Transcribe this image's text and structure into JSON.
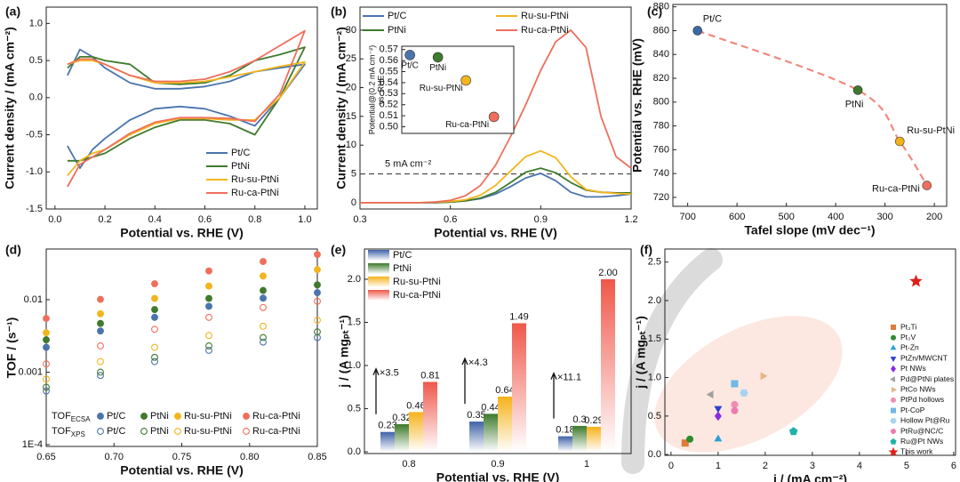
{
  "chart_data": [
    {
      "type": "line",
      "panel": "(a)",
      "xlabel": "Potential vs. RHE (V)",
      "ylabel": "Current density / (mA cm⁻²)",
      "xlim": [
        -0.035,
        1.05
      ],
      "ylim": [
        -1.5,
        1.22
      ],
      "xticks": [
        {
          "value": 0,
          "label": "0.0"
        },
        0.2,
        0.4,
        0.6,
        0.8,
        {
          "value": 1,
          "label": "1.0"
        }
      ],
      "yticks": [
        {
          "value": 1,
          "label": "1.0"
        },
        0.5,
        {
          "value": 0,
          "label": "0.0"
        },
        -0.5,
        {
          "value": -1,
          "label": "-1.0"
        },
        -1.5
      ],
      "legend": "lower right",
      "x": [
        0.05,
        0.1,
        0.15,
        0.2,
        0.3,
        0.4,
        0.5,
        0.6,
        0.7,
        0.8,
        0.9,
        1.0,
        0.9,
        0.8,
        0.7,
        0.6,
        0.5,
        0.4,
        0.3,
        0.2,
        0.15,
        0.1,
        0.05
      ],
      "series": [
        {
          "name": "Pt/C",
          "color": "#4a74ad",
          "values": [
            0.3,
            0.65,
            0.55,
            0.4,
            0.2,
            0.12,
            0.12,
            0.15,
            0.22,
            0.35,
            0.4,
            0.45,
            0.0,
            -0.38,
            -0.25,
            -0.15,
            -0.12,
            -0.15,
            -0.3,
            -0.55,
            -0.7,
            -0.95,
            -0.65
          ]
        },
        {
          "name": "PtNi",
          "color": "#3f7a2d",
          "values": [
            0.4,
            0.55,
            0.55,
            0.5,
            0.45,
            0.2,
            0.18,
            0.2,
            0.3,
            0.5,
            0.58,
            0.68,
            0.0,
            -0.5,
            -0.35,
            -0.3,
            -0.3,
            -0.4,
            -0.55,
            -0.75,
            -0.8,
            -0.85,
            -0.85
          ]
        },
        {
          "name": "Ru-su-PtNi",
          "color": "#f3b51d",
          "values": [
            0.45,
            0.5,
            0.5,
            0.45,
            0.3,
            0.2,
            0.2,
            0.22,
            0.28,
            0.35,
            0.42,
            0.48,
            0.0,
            -0.3,
            -0.3,
            -0.28,
            -0.28,
            -0.35,
            -0.5,
            -0.7,
            -0.75,
            -0.85,
            -1.05
          ]
        },
        {
          "name": "Ru-ca-PtNi",
          "color": "#ef6f5c",
          "values": [
            0.45,
            0.52,
            0.52,
            0.45,
            0.3,
            0.22,
            0.22,
            0.25,
            0.35,
            0.5,
            0.7,
            0.9,
            0.05,
            -0.32,
            -0.28,
            -0.27,
            -0.27,
            -0.33,
            -0.48,
            -0.7,
            -0.8,
            -0.9,
            -1.2
          ]
        }
      ]
    },
    {
      "type": "line",
      "panel": "(b)",
      "xlabel": "Potential vs. RHE (V)",
      "ylabel": "Current density / (mA cm⁻²)",
      "xlim": [
        0.3,
        1.2
      ],
      "ylim": [
        -1.1,
        34
      ],
      "xticks": [
        0.3,
        0.6,
        0.9,
        1.2
      ],
      "yticks": [
        0,
        5,
        10,
        15,
        20,
        25,
        30
      ],
      "legend": "upper left",
      "hline": {
        "value": 5,
        "label": "5 mA cm⁻²"
      },
      "x": [
        0.3,
        0.35,
        0.4,
        0.45,
        0.5,
        0.55,
        0.6,
        0.65,
        0.7,
        0.75,
        0.8,
        0.85,
        0.9,
        0.95,
        1.0,
        1.05,
        1.1,
        1.15,
        1.2
      ],
      "series": [
        {
          "name": "Pt/C",
          "color": "#4a74ad",
          "values": [
            0,
            0,
            0,
            0,
            0,
            0,
            0.1,
            0.3,
            0.7,
            1.5,
            2.8,
            4.3,
            5.1,
            3.8,
            1.8,
            1.0,
            1.0,
            1.2,
            1.5
          ]
        },
        {
          "name": "PtNi",
          "color": "#3f7a2d",
          "values": [
            0,
            0,
            0,
            0,
            0,
            0,
            0.1,
            0.3,
            0.8,
            1.8,
            3.5,
            5.3,
            6.0,
            5.2,
            3.5,
            2.2,
            1.8,
            1.7,
            1.7
          ]
        },
        {
          "name": "Ru-su-PtNi",
          "color": "#f3b51d",
          "values": [
            0,
            0,
            0,
            0,
            0,
            0.1,
            0.2,
            0.5,
            1.3,
            3.0,
            5.5,
            8.0,
            9.0,
            7.8,
            4.5,
            2.3,
            1.8,
            1.6,
            1.5
          ]
        },
        {
          "name": "Ru-ca-PtNi",
          "color": "#ef6f5c",
          "values": [
            0,
            0,
            0,
            0,
            0,
            0.1,
            0.4,
            1.2,
            3.0,
            6.5,
            11.5,
            17,
            23,
            28,
            30,
            27,
            15,
            8,
            6
          ]
        }
      ],
      "inset": {
        "ylabel": [
          "Potential@(0.2 mA cm⁻²)",
          "vs. RHE"
        ],
        "ylim": [
          0.494,
          0.573
        ],
        "yticks": [
          {
            "value": 0.5,
            "label": "0.50"
          },
          0.51,
          0.52,
          0.53,
          0.54,
          0.55,
          0.56,
          0.57
        ],
        "categories": [
          "Pt/C",
          "PtNi",
          "Ru-su-PtNi",
          "Ru-ca-PtNi"
        ],
        "values": [
          0.565,
          0.563,
          0.542,
          0.509
        ]
      }
    },
    {
      "type": "scatter",
      "panel": "(c)",
      "xlabel": "Tafel slope (mV dec⁻¹)",
      "ylabel": "Potential vs. RHE (mV)",
      "xlim": [
        730,
        175
      ],
      "ylim": [
        712.5,
        882
      ],
      "xticks": [
        700,
        600,
        500,
        400,
        300,
        200
      ],
      "yticks": [
        720,
        740,
        760,
        780,
        800,
        820,
        840,
        860,
        880
      ],
      "trend": true,
      "names": [
        "Pt/C",
        "PtNi",
        "Ru-su-PtNi",
        "Ru-ca-PtNi"
      ],
      "x": [
        680,
        355,
        270,
        215
      ],
      "values": [
        860,
        810,
        767,
        730
      ],
      "colors": [
        "#3a6aa5",
        "#3d7a2c",
        "#f4b21a",
        "#ef6f5c"
      ]
    },
    {
      "type": "scatter",
      "panel": "(d)",
      "xlabel": "Potential vs. RHE (V)",
      "ylabel": "TOF / (s⁻¹)",
      "xlim": [
        0.65,
        0.85
      ],
      "ylim": [
        9.45e-05,
        0.05
      ],
      "ylog": true,
      "xticks": [
        0.65,
        {
          "value": 0.7,
          "label": "0.70"
        },
        0.75,
        {
          "value": 0.8,
          "label": "0.80"
        },
        0.85
      ],
      "yticks": [
        {
          "value": 0.0001,
          "label": "1E-4"
        },
        0.001,
        0.01
      ],
      "legend": "lower left",
      "legend_rows": [
        {
          "label": "TOF",
          "subscript": "ECSA"
        },
        {
          "label": "TOF",
          "subscript": "XPS"
        }
      ],
      "x": [
        0.65,
        0.69,
        0.73,
        0.77,
        0.81,
        0.85
      ],
      "series": [
        {
          "name": "Pt/C",
          "color": "#4a74ad",
          "row": 0,
          "filled": true,
          "values": [
            0.0022,
            0.0037,
            0.0057,
            0.0081,
            0.0105,
            0.0125
          ]
        },
        {
          "name": "PtNi",
          "color": "#3f7a2d",
          "row": 0,
          "filled": true,
          "values": [
            0.0028,
            0.0047,
            0.0073,
            0.0104,
            0.0134,
            0.016
          ]
        },
        {
          "name": "Ru-su-PtNi",
          "color": "#f3b51d",
          "row": 0,
          "filled": true,
          "values": [
            0.0035,
            0.0064,
            0.0104,
            0.0154,
            0.0212,
            0.026
          ]
        },
        {
          "name": "Ru-ca-PtNi",
          "color": "#ef6f5c",
          "row": 0,
          "filled": true,
          "values": [
            0.0055,
            0.0101,
            0.0166,
            0.0249,
            0.0336,
            0.042
          ]
        },
        {
          "name": "Pt/C",
          "color": "#4a74ad",
          "row": 1,
          "filled": false,
          "values": [
            0.00055,
            0.0009,
            0.0014,
            0.002,
            0.0026,
            0.003
          ]
        },
        {
          "name": "PtNi",
          "color": "#3f7a2d",
          "row": 1,
          "filled": false,
          "values": [
            0.00062,
            0.001,
            0.0016,
            0.0023,
            0.003,
            0.0036
          ]
        },
        {
          "name": "Ru-su-PtNi",
          "color": "#f3b51d",
          "row": 1,
          "filled": false,
          "values": [
            0.0008,
            0.0014,
            0.0022,
            0.0032,
            0.0043,
            0.0052
          ]
        },
        {
          "name": "Ru-ca-PtNi",
          "color": "#ef6f5c",
          "row": 1,
          "filled": false,
          "values": [
            0.0013,
            0.0023,
            0.0039,
            0.0057,
            0.0078,
            0.0095
          ]
        }
      ]
    },
    {
      "type": "bar",
      "panel": "(e)",
      "xlabel": "Potential vs. RHE (V)",
      "ylabel": "j / (A mgₚₜ⁻¹)",
      "ylim": [
        -0.02,
        2.35
      ],
      "yticks": [
        {
          "value": 0,
          "label": "0.0"
        },
        0.5,
        {
          "value": 1,
          "label": "1.0"
        },
        1.5,
        {
          "value": 2,
          "label": "2.0"
        }
      ],
      "legend": "upper left",
      "categories": [
        "0.8",
        "0.9",
        "1"
      ],
      "annotations": [
        "×3.5",
        "×4.3",
        "×11.1"
      ],
      "series": [
        {
          "name": "Pt/C",
          "color": "#3f62a8",
          "values": [
            0.23,
            0.35,
            0.18
          ]
        },
        {
          "name": "PtNi",
          "color": "#3d7a2c",
          "values": [
            0.32,
            0.44,
            0.3
          ]
        },
        {
          "name": "Ru-su-PtNi",
          "color": "#f6b21a",
          "values": [
            0.46,
            0.64,
            0.29
          ]
        },
        {
          "name": "Ru-ca-PtNi",
          "color": "#f0574a",
          "values": [
            0.81,
            1.49,
            2
          ],
          "value_labels": [
            "0.81",
            "1.49",
            "2.00"
          ]
        }
      ]
    },
    {
      "type": "scatter",
      "panel": "(f)",
      "xlabel": "j / (mA cm⁻²)",
      "ylabel": "j / (A mgₚₜ⁻¹)",
      "xlim": [
        -0.13,
        6.04
      ],
      "ylim": [
        -0.01,
        2.67
      ],
      "xticks": [
        0,
        1,
        2,
        3,
        4,
        5,
        6
      ],
      "yticks": [
        {
          "value": 0,
          "label": "0.0"
        },
        0.5,
        {
          "value": 1,
          "label": "1.0"
        },
        1.5,
        {
          "value": 2,
          "label": "2.0"
        },
        2.5
      ],
      "legend": "right",
      "names": [
        "Pt₃Ti",
        "Pt₃V",
        "Pt-Zn",
        "PtZn/MWCNT",
        "Pt NWs",
        "Pd@PtNi plates",
        "PtCo NWs",
        "PtPd hollows",
        "Pt-CoP",
        "Hollow Pt@Ru",
        "PtRu@NC/C",
        "Ru@Pt NWs",
        "This work"
      ],
      "x": [
        0.3,
        0.4,
        1.0,
        1.0,
        1.0,
        0.85,
        1.95,
        1.35,
        1.35,
        1.55,
        1.35,
        2.6,
        5.2
      ],
      "values": [
        0.15,
        0.2,
        0.2,
        0.6,
        0.5,
        0.78,
        1.02,
        0.65,
        0.92,
        0.8,
        0.57,
        0.3,
        2.25
      ],
      "colors": [
        "#e07b39",
        "#2e8b2e",
        "#2aa0d8",
        "#2b3fd0",
        "#8a2be2",
        "#a0a0a0",
        "#e8b48a",
        "#f08cb0",
        "#6fb8e8",
        "#a8d4f0",
        "#f07ab0",
        "#20b2aa",
        "#e0201b"
      ],
      "markers": [
        "square",
        "circle",
        "triangle-up",
        "triangle-down",
        "diamond",
        "triangle-left",
        "triangle-right",
        "circle",
        "square",
        "hexagon",
        "circle",
        "pentagon",
        "star"
      ]
    }
  ]
}
